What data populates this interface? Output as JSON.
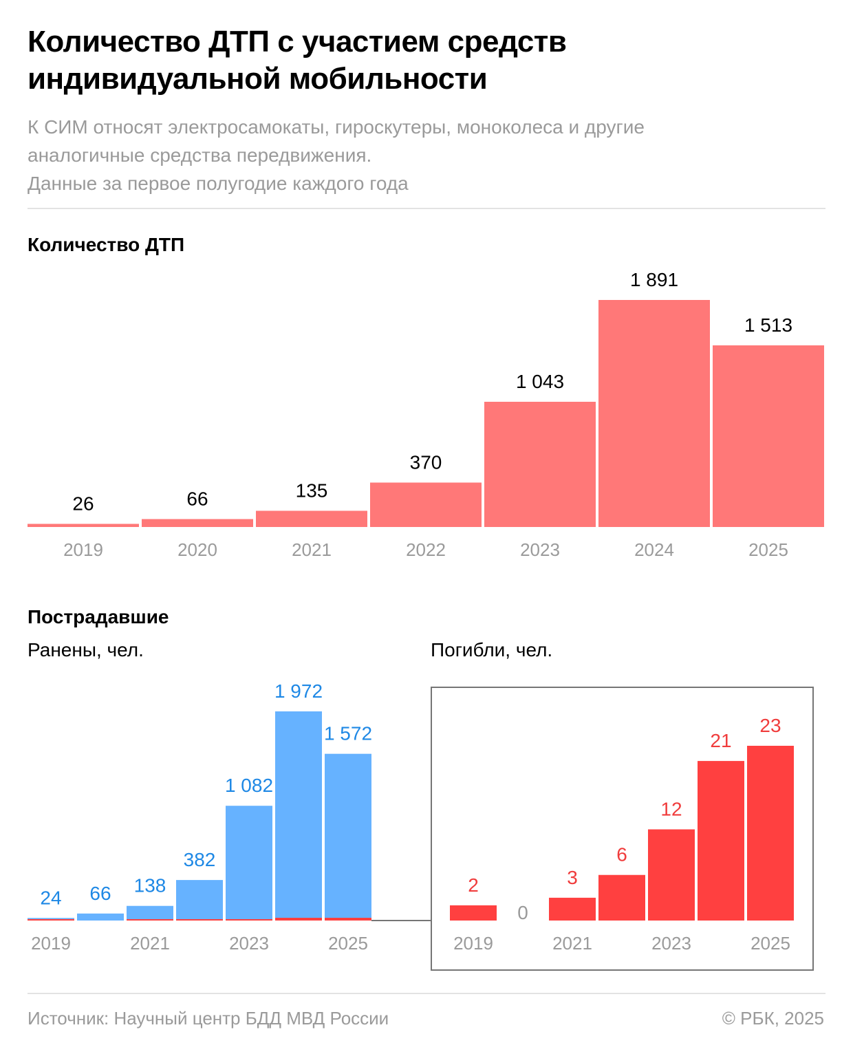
{
  "header": {
    "title": "Количество ДТП с участием средств индивидуальной мобильности",
    "subtitle_lines": [
      "К СИМ относят электросамокаты, гироскутеры, моноколеса и другие",
      "аналогичные средства передвижения.",
      "Данные за первое полугодие каждого года"
    ]
  },
  "colors": {
    "accidents": "#ff7878",
    "injured": "#66b2ff",
    "injured_label": "#1e88e5",
    "killed": "#ff4040",
    "killed_label": "#f03c3c",
    "tick": "#9a9a9a",
    "frame": "#757575"
  },
  "sections": {
    "accidents_title": "Количество ДТП",
    "victims_title": "Пострадавшие",
    "injured_legend": "Ранены, чел.",
    "killed_legend": "Погибли, чел."
  },
  "footer": {
    "source": "Источник: Научный центр БДД МВД России",
    "copyright": "© РБК, 2025"
  },
  "chart_data": [
    {
      "type": "bar",
      "title": "Количество ДТП",
      "categories": [
        "2019",
        "2020",
        "2021",
        "2022",
        "2023",
        "2024",
        "2025"
      ],
      "values": [
        26,
        66,
        135,
        370,
        1043,
        1891,
        1513
      ],
      "labels": [
        "26",
        "66",
        "135",
        "370",
        "1 043",
        "1 891",
        "1 513"
      ],
      "xlabel": "",
      "ylabel": "",
      "ylim": [
        0,
        1891
      ],
      "grid": false
    },
    {
      "type": "bar",
      "title": "Ранены, чел.",
      "categories": [
        "2019",
        "2020",
        "2021",
        "2022",
        "2023",
        "2024",
        "2025"
      ],
      "tick_labels": [
        "2019",
        "",
        "2021",
        "",
        "2023",
        "",
        "2025"
      ],
      "series": [
        {
          "name": "Ранены, чел.",
          "values": [
            24,
            66,
            138,
            382,
            1082,
            1972,
            1572
          ],
          "labels": [
            "24",
            "66",
            "138",
            "382",
            "1 082",
            "1 972",
            "1 572"
          ]
        },
        {
          "name": "Погибли, чел.",
          "values": [
            2,
            0,
            3,
            6,
            12,
            21,
            23
          ]
        }
      ],
      "ylim": [
        0,
        1972
      ],
      "grid": false
    },
    {
      "type": "bar",
      "title": "Погибли, чел.",
      "categories": [
        "2019",
        "2020",
        "2021",
        "2022",
        "2023",
        "2024",
        "2025"
      ],
      "tick_labels": [
        "2019",
        "",
        "2021",
        "",
        "2023",
        "",
        "2025"
      ],
      "values": [
        2,
        0,
        3,
        6,
        12,
        21,
        23
      ],
      "labels": [
        "2",
        "0",
        "3",
        "6",
        "12",
        "21",
        "23"
      ],
      "ylim": [
        0,
        23
      ],
      "grid": false
    }
  ]
}
